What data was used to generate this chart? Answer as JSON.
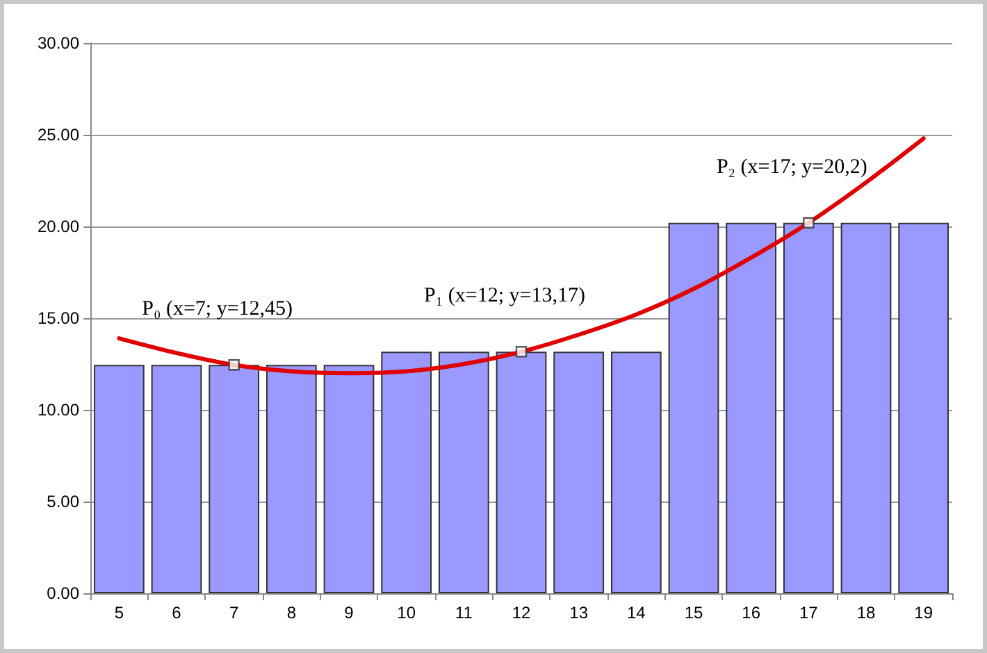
{
  "chart_data": {
    "type": "bar",
    "categories": [
      "5",
      "6",
      "7",
      "8",
      "9",
      "10",
      "11",
      "12",
      "13",
      "14",
      "15",
      "16",
      "17",
      "18",
      "19"
    ],
    "series": [
      {
        "color": "#9999ff",
        "values": [
          12.45,
          12.45,
          12.45,
          12.45,
          12.45,
          13.17,
          13.17,
          13.17,
          13.17,
          13.17,
          20.2,
          20.2,
          20.2,
          20.2,
          20.2
        ]
      },
      {
        "type": "line",
        "color": "#e00000",
        "line_style": "solid",
        "marker": "none",
        "values": [
          13.9,
          13.1,
          12.45,
          12.1,
          12.0,
          12.1,
          12.5,
          13.17,
          14.1,
          15.2,
          16.6,
          18.3,
          20.2,
          22.4,
          24.8
        ]
      },
      {
        "type": "scatter",
        "color": "#ffffff",
        "marker": "square",
        "x": [
          "7",
          "12",
          "17"
        ],
        "values": [
          12.45,
          13.17,
          20.2
        ]
      }
    ],
    "ylim": [
      0,
      30
    ],
    "yticks": [
      {
        "value": 0,
        "label": "0.00"
      },
      {
        "value": 5,
        "label": "5.00"
      },
      {
        "value": 10,
        "label": "10.00"
      },
      {
        "value": 15,
        "label": "15.00"
      },
      {
        "value": 20,
        "label": "20.00"
      },
      {
        "value": 25,
        "label": "25.00"
      },
      {
        "value": 30,
        "label": "30.00"
      }
    ],
    "grid": "y",
    "annotations": [
      {
        "text": "P₀ (x=7; y=12,45)",
        "x": "7",
        "y": 12.45
      },
      {
        "text": "P₁ (x=12; y=13,17)",
        "x": "12",
        "y": 13.17
      },
      {
        "text": "P₂ (x=17; y=20,2)",
        "x": "17",
        "y": 20.2
      }
    ]
  }
}
